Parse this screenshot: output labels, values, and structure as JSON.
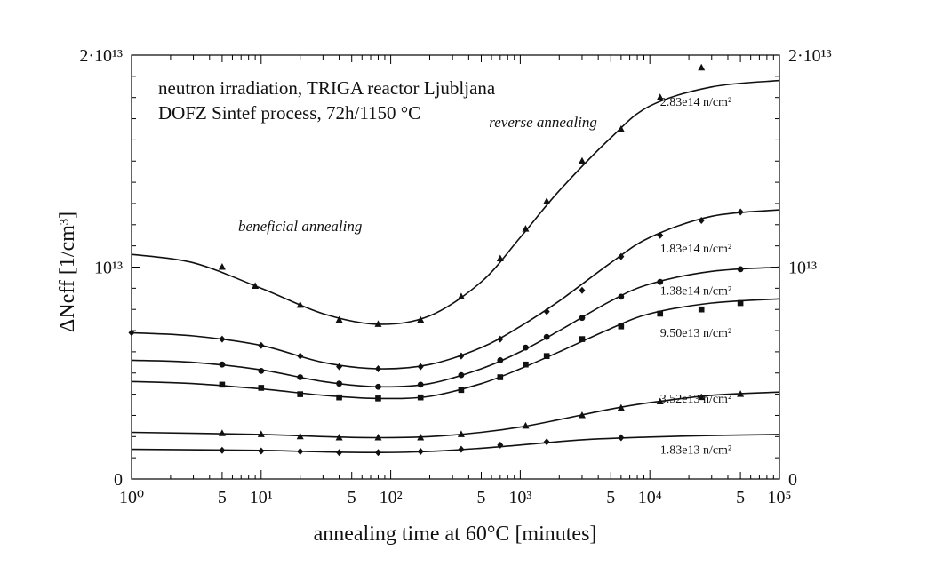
{
  "chart_data": {
    "type": "line",
    "title_lines": [
      "neutron irradiation, TRIGA reactor Ljubljana",
      "DOFZ Sintef process, 72h/1150 °C"
    ],
    "xlabel": "annealing time at 60°C [minutes]",
    "ylabel": "ΔNeff [1/cm³]",
    "x_scale": "log",
    "xlim": [
      1,
      100000
    ],
    "ylim": [
      0,
      20000000000000.0
    ],
    "grid": false,
    "x_major_ticks": [
      {
        "value": 1,
        "label": "10⁰"
      },
      {
        "value": 10,
        "label": "10¹"
      },
      {
        "value": 100,
        "label": "10²"
      },
      {
        "value": 1000,
        "label": "10³"
      },
      {
        "value": 10000,
        "label": "10⁴"
      },
      {
        "value": 100000,
        "label": "10⁵"
      }
    ],
    "x_five_ticks": [
      5,
      50,
      500,
      5000,
      50000
    ],
    "x_five_label": "5",
    "y_ticks_left": [
      {
        "value": 0,
        "label": "0"
      },
      {
        "value": 10000000000000.0,
        "label": "10¹³"
      },
      {
        "value": 20000000000000.0,
        "label": "2·10¹³"
      }
    ],
    "y_ticks_right": [
      {
        "value": 0,
        "label": "0"
      },
      {
        "value": 10000000000000.0,
        "label": "10¹³"
      },
      {
        "value": 20000000000000.0,
        "label": "2·10¹³"
      }
    ],
    "annotations": [
      {
        "text": "beneficial annealing",
        "x": 20,
        "y": 11700000000000.0
      },
      {
        "text": "reverse annealing",
        "x": 1500,
        "y": 16600000000000.0
      }
    ],
    "series": [
      {
        "name": "2.83e14 n/cm²",
        "marker": "triangle",
        "points": [
          [
            5,
            10000000000000.0
          ],
          [
            9,
            9100000000000.0
          ],
          [
            20,
            8200000000000.0
          ],
          [
            40,
            7500000000000.0
          ],
          [
            80,
            7300000000000.0
          ],
          [
            170,
            7500000000000.0
          ],
          [
            350,
            8600000000000.0
          ],
          [
            700,
            10400000000000.0
          ],
          [
            1100,
            11800000000000.0
          ],
          [
            1600,
            13100000000000.0
          ],
          [
            3000,
            15000000000000.0
          ],
          [
            6000,
            16500000000000.0
          ],
          [
            12000,
            18000000000000.0
          ],
          [
            25000,
            19400000000000.0
          ]
        ],
        "curve": [
          [
            1,
            10600000000000.0
          ],
          [
            3,
            10200000000000.0
          ],
          [
            10,
            9000000000000.0
          ],
          [
            30,
            7800000000000.0
          ],
          [
            80,
            7300000000000.0
          ],
          [
            200,
            7700000000000.0
          ],
          [
            500,
            9300000000000.0
          ],
          [
            1000,
            11400000000000.0
          ],
          [
            2000,
            13600000000000.0
          ],
          [
            5000,
            16100000000000.0
          ],
          [
            10000,
            17600000000000.0
          ],
          [
            30000,
            18500000000000.0
          ],
          [
            100000,
            18800000000000.0
          ]
        ]
      },
      {
        "name": "1.83e14 n/cm²",
        "marker": "diamond",
        "points": [
          [
            1,
            6900000000000.0
          ],
          [
            5,
            6600000000000.0
          ],
          [
            10,
            6300000000000.0
          ],
          [
            20,
            5800000000000.0
          ],
          [
            40,
            5300000000000.0
          ],
          [
            80,
            5200000000000.0
          ],
          [
            170,
            5300000000000.0
          ],
          [
            350,
            5800000000000.0
          ],
          [
            700,
            6600000000000.0
          ],
          [
            1600,
            7900000000000.0
          ],
          [
            3000,
            8900000000000.0
          ],
          [
            6000,
            10500000000000.0
          ],
          [
            12000,
            11500000000000.0
          ],
          [
            25000,
            12200000000000.0
          ],
          [
            50000,
            12600000000000.0
          ]
        ],
        "curve": [
          [
            1,
            6900000000000.0
          ],
          [
            3,
            6750000000000.0
          ],
          [
            10,
            6300000000000.0
          ],
          [
            30,
            5500000000000.0
          ],
          [
            80,
            5200000000000.0
          ],
          [
            200,
            5400000000000.0
          ],
          [
            500,
            6200000000000.0
          ],
          [
            1000,
            7200000000000.0
          ],
          [
            2000,
            8400000000000.0
          ],
          [
            5000,
            10200000000000.0
          ],
          [
            10000,
            11400000000000.0
          ],
          [
            30000,
            12400000000000.0
          ],
          [
            100000,
            12700000000000.0
          ]
        ]
      },
      {
        "name": "1.38e14 n/cm²",
        "marker": "circle",
        "points": [
          [
            5,
            5400000000000.0
          ],
          [
            10,
            5100000000000.0
          ],
          [
            20,
            4800000000000.0
          ],
          [
            40,
            4500000000000.0
          ],
          [
            80,
            4350000000000.0
          ],
          [
            170,
            4450000000000.0
          ],
          [
            350,
            4900000000000.0
          ],
          [
            700,
            5600000000000.0
          ],
          [
            1100,
            6200000000000.0
          ],
          [
            1600,
            6700000000000.0
          ],
          [
            3000,
            7600000000000.0
          ],
          [
            6000,
            8600000000000.0
          ],
          [
            12000,
            9300000000000.0
          ],
          [
            50000,
            9900000000000.0
          ]
        ],
        "curve": [
          [
            1,
            5600000000000.0
          ],
          [
            3,
            5500000000000.0
          ],
          [
            10,
            5150000000000.0
          ],
          [
            30,
            4600000000000.0
          ],
          [
            80,
            4350000000000.0
          ],
          [
            200,
            4500000000000.0
          ],
          [
            500,
            5200000000000.0
          ],
          [
            1000,
            6000000000000.0
          ],
          [
            2000,
            7000000000000.0
          ],
          [
            5000,
            8400000000000.0
          ],
          [
            10000,
            9200000000000.0
          ],
          [
            30000,
            9800000000000.0
          ],
          [
            100000,
            10000000000000.0
          ]
        ]
      },
      {
        "name": "9.50e13 n/cm²",
        "marker": "square",
        "points": [
          [
            5,
            4450000000000.0
          ],
          [
            10,
            4300000000000.0
          ],
          [
            20,
            4000000000000.0
          ],
          [
            40,
            3850000000000.0
          ],
          [
            80,
            3800000000000.0
          ],
          [
            170,
            3850000000000.0
          ],
          [
            350,
            4200000000000.0
          ],
          [
            700,
            4800000000000.0
          ],
          [
            1100,
            5400000000000.0
          ],
          [
            1600,
            5800000000000.0
          ],
          [
            3000,
            6600000000000.0
          ],
          [
            6000,
            7200000000000.0
          ],
          [
            12000,
            7800000000000.0
          ],
          [
            25000,
            8000000000000.0
          ],
          [
            50000,
            8300000000000.0
          ]
        ],
        "curve": [
          [
            1,
            4600000000000.0
          ],
          [
            3,
            4500000000000.0
          ],
          [
            10,
            4250000000000.0
          ],
          [
            30,
            3950000000000.0
          ],
          [
            80,
            3800000000000.0
          ],
          [
            200,
            3900000000000.0
          ],
          [
            500,
            4500000000000.0
          ],
          [
            1000,
            5200000000000.0
          ],
          [
            2000,
            6000000000000.0
          ],
          [
            5000,
            7100000000000.0
          ],
          [
            10000,
            7800000000000.0
          ],
          [
            30000,
            8300000000000.0
          ],
          [
            100000,
            8500000000000.0
          ]
        ]
      },
      {
        "name": "3.52e13 n/cm²",
        "marker": "triangle",
        "points": [
          [
            5,
            2150000000000.0
          ],
          [
            10,
            2100000000000.0
          ],
          [
            20,
            2000000000000.0
          ],
          [
            40,
            1950000000000.0
          ],
          [
            80,
            1950000000000.0
          ],
          [
            170,
            1950000000000.0
          ],
          [
            350,
            2100000000000.0
          ],
          [
            1100,
            2500000000000.0
          ],
          [
            3000,
            3000000000000.0
          ],
          [
            6000,
            3350000000000.0
          ],
          [
            12000,
            3650000000000.0
          ],
          [
            25000,
            3850000000000.0
          ],
          [
            50000,
            4000000000000.0
          ]
        ],
        "curve": [
          [
            1,
            2200000000000.0
          ],
          [
            10,
            2100000000000.0
          ],
          [
            30,
            2000000000000.0
          ],
          [
            80,
            1950000000000.0
          ],
          [
            200,
            2000000000000.0
          ],
          [
            500,
            2200000000000.0
          ],
          [
            1000,
            2450000000000.0
          ],
          [
            2000,
            2800000000000.0
          ],
          [
            5000,
            3300000000000.0
          ],
          [
            10000,
            3600000000000.0
          ],
          [
            30000,
            3950000000000.0
          ],
          [
            100000,
            4100000000000.0
          ]
        ]
      },
      {
        "name": "1.83e13 n/cm²",
        "marker": "diamond",
        "points": [
          [
            5,
            1350000000000.0
          ],
          [
            10,
            1320000000000.0
          ],
          [
            20,
            1300000000000.0
          ],
          [
            40,
            1250000000000.0
          ],
          [
            80,
            1250000000000.0
          ],
          [
            170,
            1300000000000.0
          ],
          [
            350,
            1400000000000.0
          ],
          [
            700,
            1600000000000.0
          ],
          [
            1600,
            1750000000000.0
          ],
          [
            6000,
            1950000000000.0
          ]
        ],
        "curve": [
          [
            1,
            1400000000000.0
          ],
          [
            10,
            1350000000000.0
          ],
          [
            30,
            1280000000000.0
          ],
          [
            80,
            1250000000000.0
          ],
          [
            200,
            1300000000000.0
          ],
          [
            500,
            1450000000000.0
          ],
          [
            1000,
            1600000000000.0
          ],
          [
            3000,
            1850000000000.0
          ],
          [
            10000,
            1980000000000.0
          ],
          [
            30000,
            2050000000000.0
          ],
          [
            100000,
            2100000000000.0
          ]
        ]
      }
    ],
    "label_positions": [
      {
        "series": 0,
        "x": 12000,
        "y": 17600000000000.0
      },
      {
        "series": 1,
        "x": 12000,
        "y": 10700000000000.0
      },
      {
        "series": 2,
        "x": 12000,
        "y": 8700000000000.0
      },
      {
        "series": 3,
        "x": 12000,
        "y": 6700000000000.0
      },
      {
        "series": 4,
        "x": 12000,
        "y": 3600000000000.0
      },
      {
        "series": 5,
        "x": 12000,
        "y": 1200000000000.0
      }
    ]
  }
}
